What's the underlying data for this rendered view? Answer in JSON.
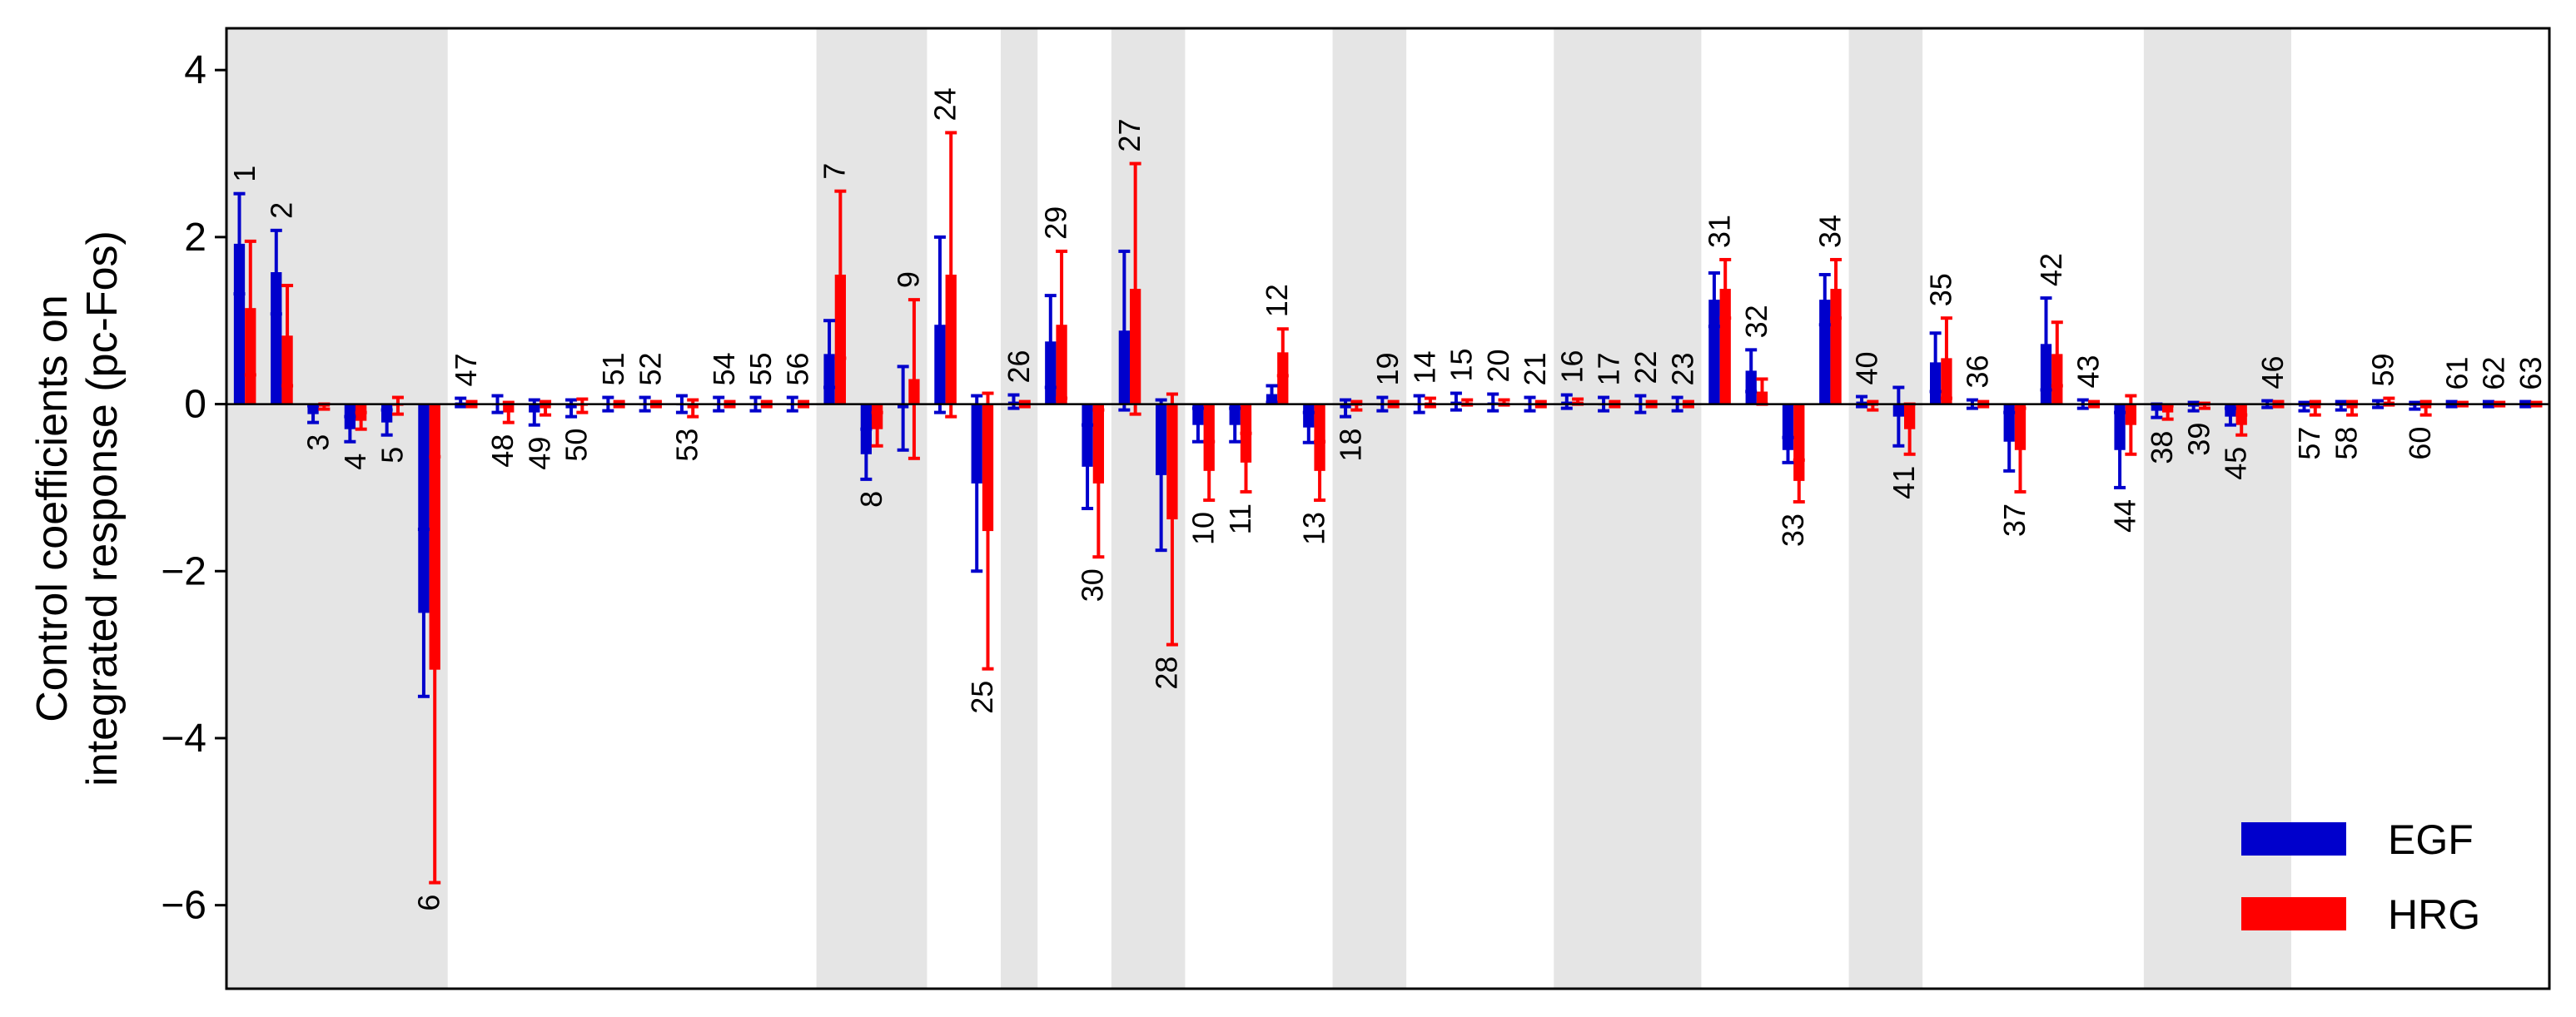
{
  "chart_data": {
    "type": "bar",
    "ylabel_line1": "Control coefficients on",
    "ylabel_line2": "integrated response (pc-Fos)",
    "xlabel": "",
    "ylim": [
      -7,
      4.5
    ],
    "yticks": [
      4,
      2,
      0,
      -2,
      -4,
      -6
    ],
    "ytick_labels": [
      "4",
      "2",
      "0",
      "−2",
      "−4",
      "−6"
    ],
    "legend_position": "bottom-right",
    "colors": {
      "EGF": "#0000cc",
      "HRG": "#ff0000",
      "shade": "#e5e5e5"
    },
    "series": [
      {
        "name": "EGF",
        "color": "#0000cc"
      },
      {
        "name": "HRG",
        "color": "#ff0000"
      }
    ],
    "shaded_groups": [
      [
        0,
        5
      ],
      [
        16,
        18
      ],
      [
        21,
        21
      ],
      [
        24,
        25
      ],
      [
        30,
        31
      ],
      [
        36,
        39
      ],
      [
        44,
        45
      ],
      [
        52,
        55
      ]
    ],
    "bars": [
      {
        "label": "1",
        "egf": 1.92,
        "egf_err": 0.6,
        "hrg": 1.15,
        "hrg_err": 0.8
      },
      {
        "label": "2",
        "egf": 1.58,
        "egf_err": 0.5,
        "hrg": 0.82,
        "hrg_err": 0.6
      },
      {
        "label": "3",
        "egf": -0.12,
        "egf_err": 0.1,
        "hrg": -0.03,
        "hrg_err": 0.03
      },
      {
        "label": "4",
        "egf": -0.3,
        "egf_err": 0.15,
        "hrg": -0.2,
        "hrg_err": 0.1
      },
      {
        "label": "5",
        "egf": -0.22,
        "egf_err": 0.15,
        "hrg": -0.02,
        "hrg_err": 0.1
      },
      {
        "label": "6",
        "egf": -2.5,
        "egf_err": 1.0,
        "hrg": -3.18,
        "hrg_err": 2.55
      },
      {
        "label": "47",
        "egf": 0.02,
        "egf_err": 0.05,
        "hrg": 0.0,
        "hrg_err": 0.03
      },
      {
        "label": "48",
        "egf": 0.0,
        "egf_err": 0.1,
        "hrg": -0.1,
        "hrg_err": 0.12
      },
      {
        "label": "49",
        "egf": -0.1,
        "egf_err": 0.15,
        "hrg": -0.05,
        "hrg_err": 0.08
      },
      {
        "label": "50",
        "egf": -0.05,
        "egf_err": 0.1,
        "hrg": -0.02,
        "hrg_err": 0.08
      },
      {
        "label": "51",
        "egf": 0.0,
        "egf_err": 0.08,
        "hrg": 0.0,
        "hrg_err": 0.03
      },
      {
        "label": "52",
        "egf": 0.0,
        "egf_err": 0.08,
        "hrg": 0.0,
        "hrg_err": 0.03
      },
      {
        "label": "53",
        "egf": 0.0,
        "egf_err": 0.1,
        "hrg": -0.05,
        "hrg_err": 0.1
      },
      {
        "label": "54",
        "egf": 0.0,
        "egf_err": 0.08,
        "hrg": 0.0,
        "hrg_err": 0.03
      },
      {
        "label": "55",
        "egf": 0.0,
        "egf_err": 0.08,
        "hrg": 0.0,
        "hrg_err": 0.03
      },
      {
        "label": "56",
        "egf": 0.0,
        "egf_err": 0.08,
        "hrg": 0.0,
        "hrg_err": 0.03
      },
      {
        "label": "7",
        "egf": 0.6,
        "egf_err": 0.4,
        "hrg": 1.55,
        "hrg_err": 1.0
      },
      {
        "label": "8",
        "egf": -0.6,
        "egf_err": 0.3,
        "hrg": -0.3,
        "hrg_err": 0.2
      },
      {
        "label": "9",
        "egf": -0.05,
        "egf_err": 0.5,
        "hrg": 0.3,
        "hrg_err": 0.95
      },
      {
        "label": "24",
        "egf": 0.95,
        "egf_err": 1.05,
        "hrg": 1.55,
        "hrg_err": 1.7
      },
      {
        "label": "25",
        "egf": -0.95,
        "egf_err": 1.05,
        "hrg": -1.52,
        "hrg_err": 1.65
      },
      {
        "label": "26",
        "egf": 0.03,
        "egf_err": 0.08,
        "hrg": 0.0,
        "hrg_err": 0.03
      },
      {
        "label": "29",
        "egf": 0.75,
        "egf_err": 0.55,
        "hrg": 0.95,
        "hrg_err": 0.88
      },
      {
        "label": "30",
        "egf": -0.75,
        "egf_err": 0.5,
        "hrg": -0.95,
        "hrg_err": 0.88
      },
      {
        "label": "27",
        "egf": 0.88,
        "egf_err": 0.95,
        "hrg": 1.38,
        "hrg_err": 1.5
      },
      {
        "label": "28",
        "egf": -0.85,
        "egf_err": 0.9,
        "hrg": -1.38,
        "hrg_err": 1.5
      },
      {
        "label": "10",
        "egf": -0.25,
        "egf_err": 0.2,
        "hrg": -0.8,
        "hrg_err": 0.35
      },
      {
        "label": "11",
        "egf": -0.25,
        "egf_err": 0.2,
        "hrg": -0.7,
        "hrg_err": 0.35
      },
      {
        "label": "12",
        "egf": 0.12,
        "egf_err": 0.1,
        "hrg": 0.62,
        "hrg_err": 0.28
      },
      {
        "label": "13",
        "egf": -0.28,
        "egf_err": 0.18,
        "hrg": -0.8,
        "hrg_err": 0.35
      },
      {
        "label": "18",
        "egf": -0.05,
        "egf_err": 0.1,
        "hrg": -0.02,
        "hrg_err": 0.05
      },
      {
        "label": "19",
        "egf": 0.0,
        "egf_err": 0.08,
        "hrg": 0.0,
        "hrg_err": 0.03
      },
      {
        "label": "14",
        "egf": 0.0,
        "egf_err": 0.1,
        "hrg": 0.02,
        "hrg_err": 0.05
      },
      {
        "label": "15",
        "egf": 0.03,
        "egf_err": 0.1,
        "hrg": 0.02,
        "hrg_err": 0.03
      },
      {
        "label": "20",
        "egf": 0.02,
        "egf_err": 0.1,
        "hrg": 0.02,
        "hrg_err": 0.03
      },
      {
        "label": "21",
        "egf": 0.0,
        "egf_err": 0.08,
        "hrg": 0.0,
        "hrg_err": 0.03
      },
      {
        "label": "16",
        "egf": 0.03,
        "egf_err": 0.08,
        "hrg": 0.03,
        "hrg_err": 0.03
      },
      {
        "label": "17",
        "egf": 0.0,
        "egf_err": 0.08,
        "hrg": 0.0,
        "hrg_err": 0.03
      },
      {
        "label": "22",
        "egf": 0.0,
        "egf_err": 0.1,
        "hrg": 0.0,
        "hrg_err": 0.03
      },
      {
        "label": "23",
        "egf": 0.0,
        "egf_err": 0.08,
        "hrg": 0.0,
        "hrg_err": 0.03
      },
      {
        "label": "31",
        "egf": 1.25,
        "egf_err": 0.32,
        "hrg": 1.38,
        "hrg_err": 0.35
      },
      {
        "label": "32",
        "egf": 0.4,
        "egf_err": 0.25,
        "hrg": 0.15,
        "hrg_err": 0.15
      },
      {
        "label": "33",
        "egf": -0.55,
        "egf_err": 0.15,
        "hrg": -0.92,
        "hrg_err": 0.25
      },
      {
        "label": "34",
        "egf": 1.25,
        "egf_err": 0.3,
        "hrg": 1.38,
        "hrg_err": 0.35
      },
      {
        "label": "40",
        "egf": 0.03,
        "egf_err": 0.06,
        "hrg": -0.02,
        "hrg_err": 0.05
      },
      {
        "label": "41",
        "egf": -0.15,
        "egf_err": 0.35,
        "hrg": -0.3,
        "hrg_err": 0.3
      },
      {
        "label": "35",
        "egf": 0.5,
        "egf_err": 0.35,
        "hrg": 0.55,
        "hrg_err": 0.48
      },
      {
        "label": "36",
        "egf": 0.0,
        "egf_err": 0.05,
        "hrg": 0.0,
        "hrg_err": 0.03
      },
      {
        "label": "37",
        "egf": -0.45,
        "egf_err": 0.35,
        "hrg": -0.55,
        "hrg_err": 0.5
      },
      {
        "label": "42",
        "egf": 0.72,
        "egf_err": 0.55,
        "hrg": 0.6,
        "hrg_err": 0.38
      },
      {
        "label": "43",
        "egf": 0.0,
        "egf_err": 0.05,
        "hrg": 0.0,
        "hrg_err": 0.03
      },
      {
        "label": "44",
        "egf": -0.55,
        "egf_err": 0.45,
        "hrg": -0.25,
        "hrg_err": 0.35
      },
      {
        "label": "38",
        "egf": -0.08,
        "egf_err": 0.08,
        "hrg": -0.1,
        "hrg_err": 0.08
      },
      {
        "label": "39",
        "egf": -0.03,
        "egf_err": 0.05,
        "hrg": -0.02,
        "hrg_err": 0.03
      },
      {
        "label": "45",
        "egf": -0.15,
        "egf_err": 0.1,
        "hrg": -0.25,
        "hrg_err": 0.12
      },
      {
        "label": "46",
        "egf": 0.0,
        "egf_err": 0.04,
        "hrg": 0.0,
        "hrg_err": 0.03
      },
      {
        "label": "57",
        "egf": -0.03,
        "egf_err": 0.05,
        "hrg": -0.05,
        "hrg_err": 0.08
      },
      {
        "label": "58",
        "egf": -0.02,
        "egf_err": 0.05,
        "hrg": -0.05,
        "hrg_err": 0.08
      },
      {
        "label": "59",
        "egf": 0.0,
        "egf_err": 0.04,
        "hrg": 0.03,
        "hrg_err": 0.04
      },
      {
        "label": "60",
        "egf": -0.02,
        "egf_err": 0.04,
        "hrg": -0.05,
        "hrg_err": 0.08
      },
      {
        "label": "61",
        "egf": 0.0,
        "egf_err": 0.03,
        "hrg": 0.0,
        "hrg_err": 0.02
      },
      {
        "label": "62",
        "egf": 0.0,
        "egf_err": 0.03,
        "hrg": 0.0,
        "hrg_err": 0.02
      },
      {
        "label": "63",
        "egf": 0.0,
        "egf_err": 0.03,
        "hrg": 0.0,
        "hrg_err": 0.02
      }
    ]
  }
}
